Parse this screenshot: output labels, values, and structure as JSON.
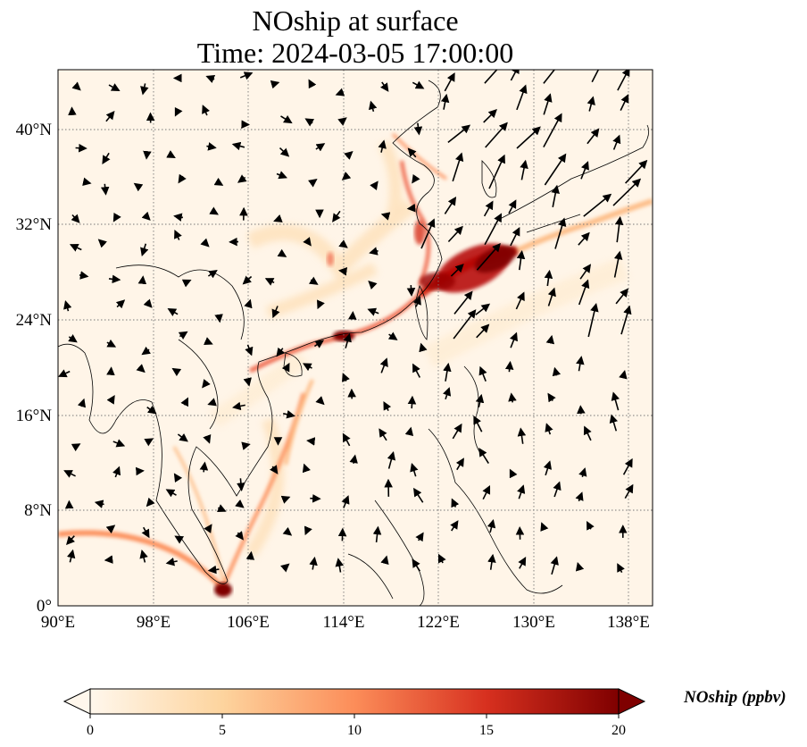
{
  "title_line1": "NOship at surface",
  "title_line2": "Time: 2024-03-05 17:00:00",
  "map": {
    "lon_range": [
      90,
      140
    ],
    "lat_range": [
      0,
      45
    ],
    "xticks": [
      "90°E",
      "98°E",
      "106°E",
      "114°E",
      "122°E",
      "130°E",
      "138°E"
    ],
    "xtick_values": [
      90,
      98,
      106,
      114,
      122,
      130,
      138
    ],
    "yticks": [
      "0°",
      "8°N",
      "16°N",
      "24°N",
      "32°N",
      "40°N"
    ],
    "ytick_values": [
      0,
      8,
      16,
      24,
      32,
      40
    ],
    "gridlines": "dotted",
    "colormap": "OrRd"
  },
  "colorbar": {
    "label": "NOship (ppbv)",
    "ticks": [
      "0",
      "5",
      "10",
      "15",
      "20"
    ],
    "range": [
      0,
      20
    ],
    "colors": [
      "#fff7ec",
      "#fdd49e",
      "#fc8d59",
      "#d7301f",
      "#7f0000"
    ]
  }
}
